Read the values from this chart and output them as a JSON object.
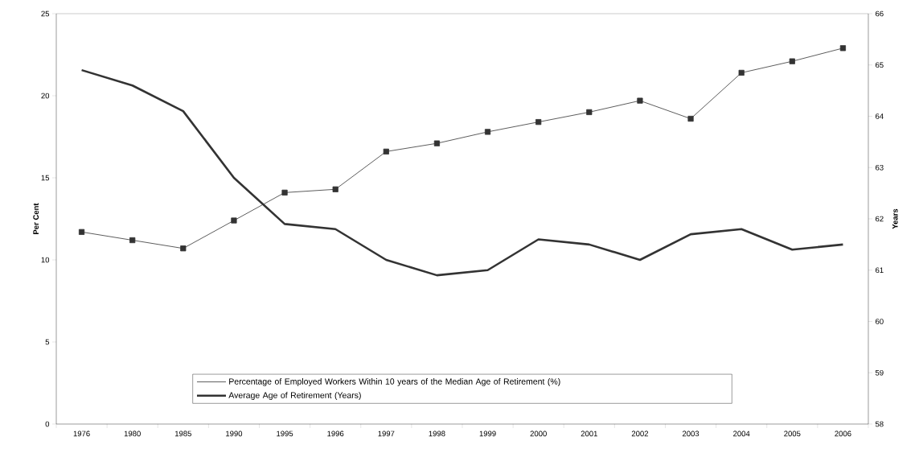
{
  "chart_data": {
    "type": "line",
    "ylabel": "Per Cent",
    "y2label": "Years",
    "categories": [
      "1976",
      "1980",
      "1985",
      "1990",
      "1995",
      "1996",
      "1997",
      "1998",
      "1999",
      "2000",
      "2001",
      "2002",
      "2003",
      "2004",
      "2005",
      "2006"
    ],
    "series": [
      {
        "name": "Percentage of Employed Workers Within 10 years of the Median Age of Retirement (%)",
        "color": "#333333",
        "marker": "square",
        "values": [
          11.7,
          11.2,
          10.7,
          12.4,
          14.1,
          14.3,
          16.6,
          17.1,
          17.8,
          18.4,
          19.0,
          19.7,
          18.6,
          21.4,
          22.1,
          22.9
        ]
      },
      {
        "name": "Average Age of Retirement (Years)",
        "color": "#333333",
        "marker": "none",
        "axis": "y2",
        "values": [
          64.9,
          64.6,
          64.1,
          62.8,
          61.9,
          61.8,
          61.2,
          60.9,
          61.0,
          61.6,
          61.5,
          61.2,
          61.7,
          61.8,
          61.4,
          61.5
        ]
      }
    ],
    "ylim": [
      0,
      25
    ],
    "yticks": [
      0,
      5,
      10,
      15,
      20,
      25
    ],
    "y2lim": [
      58,
      66
    ],
    "y2ticks": [
      58,
      59,
      60,
      61,
      62,
      63,
      64,
      65,
      66
    ],
    "legend": "bottom",
    "grid": false
  }
}
